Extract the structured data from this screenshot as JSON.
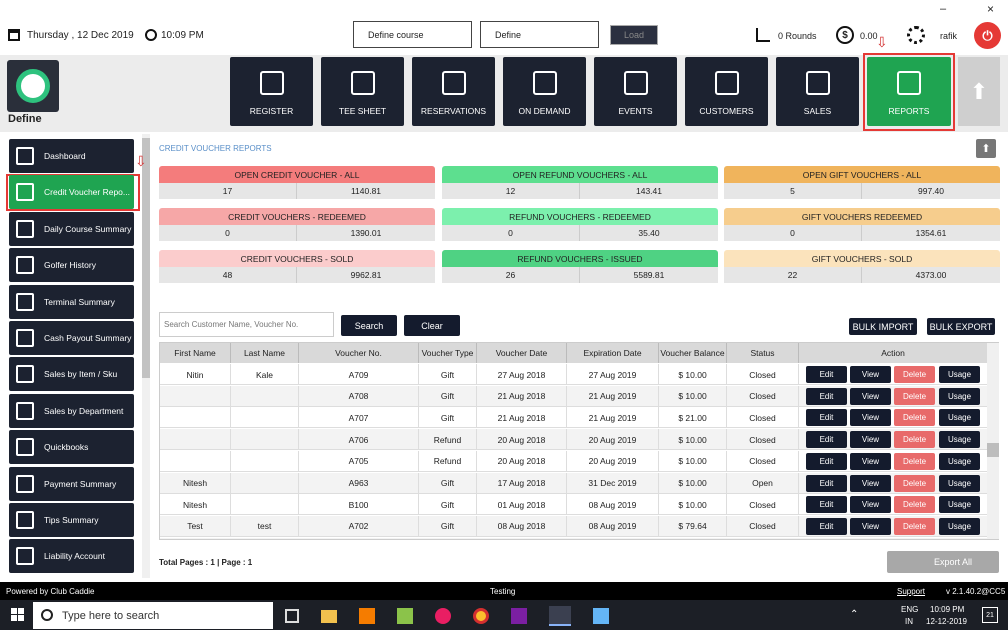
{
  "topbar": {
    "date": "Thursday , 12 Dec 2019",
    "time": "10:09 PM",
    "course_select": "Define course",
    "define_select": "Define",
    "load": "Load",
    "rounds": "0 Rounds",
    "balance": "0.00",
    "user": "rafik"
  },
  "brand": "Define",
  "nav": [
    "REGISTER",
    "TEE SHEET",
    "RESERVATIONS",
    "ON DEMAND",
    "EVENTS",
    "CUSTOMERS",
    "SALES",
    "REPORTS"
  ],
  "sidebar": [
    "Dashboard",
    "Credit Voucher Repo...",
    "Daily Course Summary",
    "Golfer History",
    "Terminal Summary",
    "Cash Payout Summary",
    "Sales by Item / Sku",
    "Sales by Department",
    "Quickbooks",
    "Payment Summary",
    "Tips Summary",
    "Liability Account"
  ],
  "section_title": "CREDIT VOUCHER REPORTS",
  "cards": [
    [
      {
        "title": "OPEN CREDIT VOUCHER - ALL",
        "count": 17,
        "amount": "1140.81"
      },
      {
        "title": "CREDIT VOUCHERS - REDEEMED",
        "count": 0,
        "amount": "1390.01"
      },
      {
        "title": "CREDIT VOUCHERS - SOLD",
        "count": 48,
        "amount": "9962.81"
      }
    ],
    [
      {
        "title": "OPEN REFUND VOUCHERS - ALL",
        "count": 12,
        "amount": "143.41"
      },
      {
        "title": "REFUND VOUCHERS - REDEEMED",
        "count": 0,
        "amount": "35.40"
      },
      {
        "title": "REFUND VOUCHERS - ISSUED",
        "count": 26,
        "amount": "5589.81"
      }
    ],
    [
      {
        "title": "OPEN GIFT VOUCHERS - ALL",
        "count": 5,
        "amount": "997.40"
      },
      {
        "title": "GIFT VOUCHERS REDEEMED",
        "count": 0,
        "amount": "1354.61"
      },
      {
        "title": "GIFT VOUCHERS - SOLD",
        "count": 22,
        "amount": "4373.00"
      }
    ]
  ],
  "search": {
    "placeholder": "Search Customer Name, Voucher No.",
    "search": "Search",
    "clear": "Clear",
    "bulk_import": "BULK IMPORT",
    "bulk_export": "BULK EXPORT"
  },
  "table": {
    "columns": [
      "First Name",
      "Last Name",
      "Voucher No.",
      "Voucher Type",
      "Voucher Date",
      "Expiration Date",
      "Voucher Balance",
      "Status",
      "Action"
    ],
    "actions": [
      "Edit",
      "View",
      "Delete",
      "Usage"
    ],
    "rows": [
      [
        "Nitin",
        "Kale",
        "A709",
        "Gift",
        "27 Aug 2018",
        "27 Aug 2019",
        "$ 10.00",
        "Closed"
      ],
      [
        null,
        null,
        "A708",
        "Gift",
        "21 Aug 2018",
        "21 Aug 2019",
        "$ 10.00",
        "Closed"
      ],
      [
        null,
        null,
        "A707",
        "Gift",
        "21 Aug 2018",
        "21 Aug 2019",
        "$ 21.00",
        "Closed"
      ],
      [
        null,
        null,
        "A706",
        "Refund",
        "20 Aug 2018",
        "20 Aug 2019",
        "$ 10.00",
        "Closed"
      ],
      [
        null,
        null,
        "A705",
        "Refund",
        "20 Aug 2018",
        "20 Aug 2019",
        "$ 10.00",
        "Closed"
      ],
      [
        "Nitesh",
        null,
        "A963",
        "Gift",
        "17 Aug 2018",
        "31 Dec 2019",
        "$ 10.00",
        "Open"
      ],
      [
        "Nitesh",
        null,
        "B100",
        "Gift",
        "01 Aug 2018",
        "08 Aug 2019",
        "$ 10.00",
        "Closed"
      ],
      [
        "Test",
        "test",
        "A702",
        "Gift",
        "08 Aug 2018",
        "08 Aug 2019",
        "$ 79.64",
        "Closed"
      ]
    ]
  },
  "footer": {
    "pages": "Total Pages : 1 | Page : 1",
    "export_all": "Export All"
  },
  "statusbar": {
    "powered": "Powered by Club Caddie",
    "env": "Testing",
    "support": "Support",
    "version": "v 2.1.40.2@CC5"
  },
  "taskbar": {
    "search": "Type here to search",
    "lang": "ENG",
    "region": "IN",
    "time": "10:09 PM",
    "date": "12-12-2019",
    "notifications": 21
  }
}
